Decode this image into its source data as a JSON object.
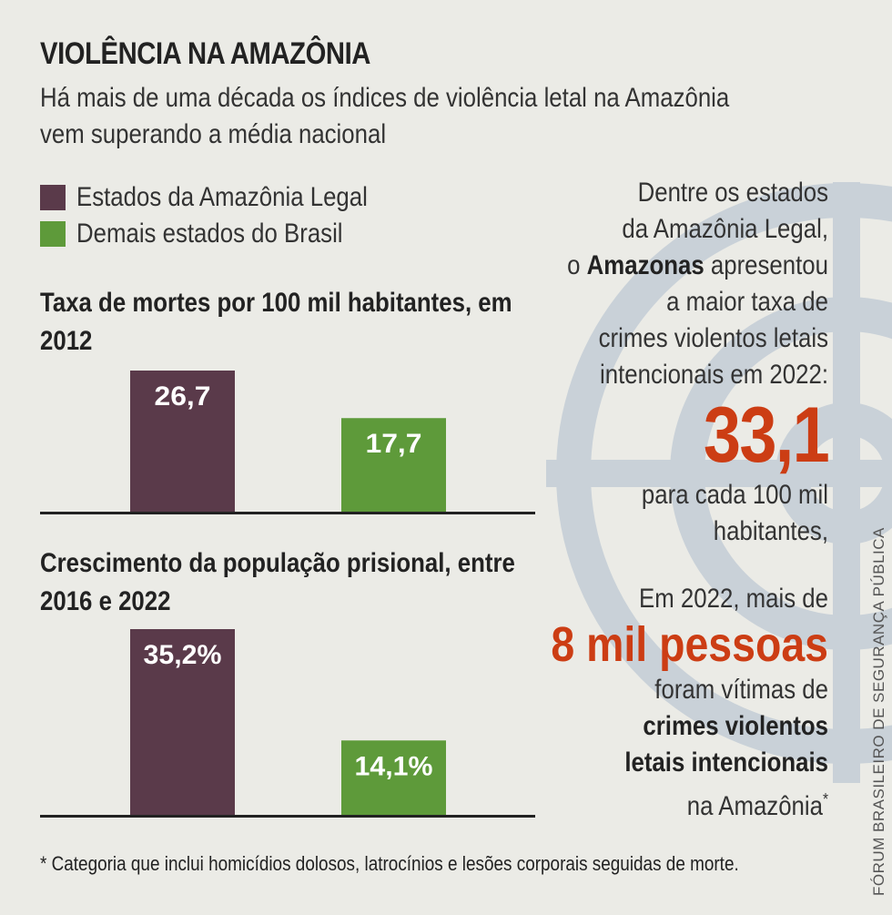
{
  "title": "VIOLÊNCIA NA AMAZÔNIA",
  "subtitle": "Há mais de uma década os índices de violência letal na Amazônia vem superando a média nacional",
  "colors": {
    "amazonia": "#5a3a4a",
    "demais": "#5e9a3a",
    "highlight": "#cc3d14",
    "background": "#ebebe6",
    "watermark": "#c9d1d8"
  },
  "legend": [
    {
      "label": "Estados da Amazônia Legal",
      "color": "#5a3a4a"
    },
    {
      "label": "Demais estados do Brasil",
      "color": "#5e9a3a"
    }
  ],
  "chart_data": [
    {
      "type": "bar",
      "title": "Taxa de mortes por 100 mil habitantes, em 2012",
      "categories": [
        "Estados da Amazônia Legal",
        "Demais estados do Brasil"
      ],
      "values": [
        26.7,
        17.7
      ],
      "value_labels": [
        "26,7",
        "17,7"
      ],
      "colors": [
        "#5a3a4a",
        "#5e9a3a"
      ],
      "ylim": [
        0,
        26.7
      ],
      "grid": false
    },
    {
      "type": "bar",
      "title": "Crescimento da população prisional, entre 2016 e 2022",
      "categories": [
        "Estados da Amazônia Legal",
        "Demais estados do Brasil"
      ],
      "values": [
        35.2,
        14.1
      ],
      "value_labels": [
        "35,2%",
        "14,1%"
      ],
      "colors": [
        "#5a3a4a",
        "#5e9a3a"
      ],
      "ylim": [
        0,
        35.2
      ],
      "grid": false
    }
  ],
  "side": {
    "p1": [
      "Dentre os estados",
      "da Amazônia Legal,"
    ],
    "p1_pre": "o",
    "p1_bold": "Amazonas",
    "p1_post": "apresentou",
    "p1_rest": [
      "a maior taxa de",
      "crimes violentos letais",
      "intencionais em 2022:"
    ],
    "big_value": "33,1",
    "p1_tail": [
      "para cada 100 mil",
      "habitantes,"
    ],
    "p2_line1": "Em 2022, mais de",
    "big_people": "8 mil pessoas",
    "p2_line2": "foram vítimas de",
    "p2_bold": [
      "crimes violentos",
      "letais intencionais"
    ],
    "p2_last": "na Amazônia",
    "p2_mark": "*"
  },
  "footnote": "* Categoria que inclui homicídios dolosos, latrocínios e lesões corporais seguidas de morte.",
  "source": "FÓRUM BRASILEIRO DE SEGURANÇA PÚBLICA"
}
